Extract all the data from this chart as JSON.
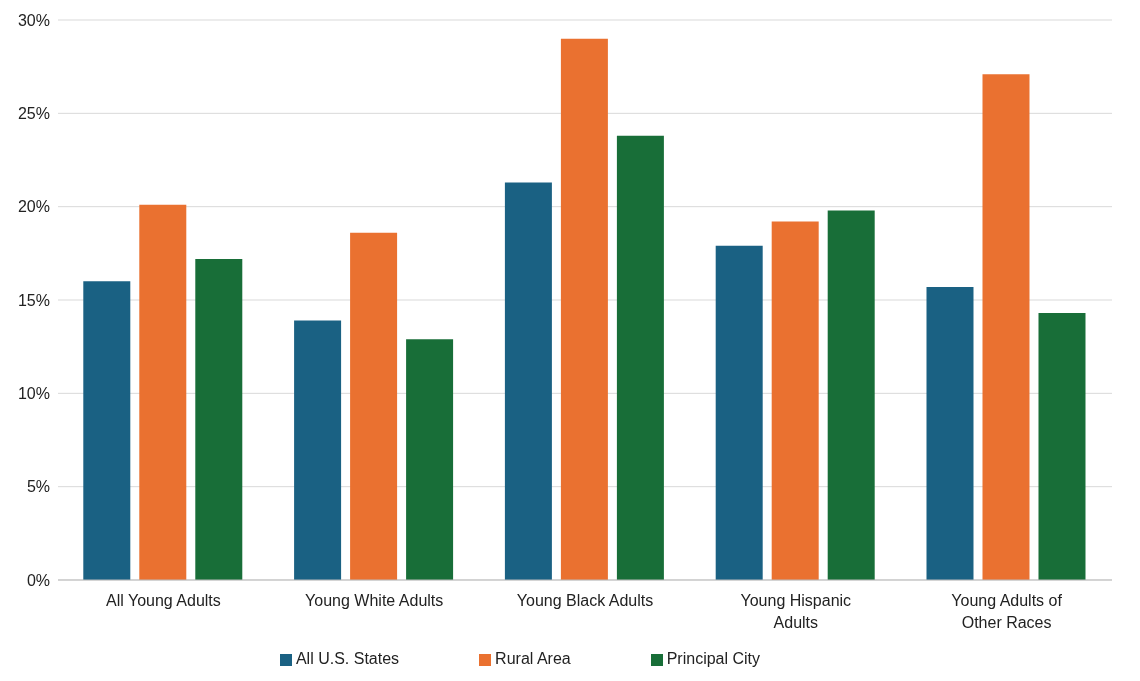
{
  "chart_data": {
    "type": "bar",
    "categories": [
      "All Young Adults",
      "Young White Adults",
      "Young Black Adults",
      "Young Hispanic Adults",
      "Young Adults of Other Races"
    ],
    "series": [
      {
        "name": "All U.S. States",
        "color": "#1a6183",
        "values": [
          16.0,
          13.9,
          21.3,
          17.9,
          15.7
        ]
      },
      {
        "name": "Rural Area",
        "color": "#ea7130",
        "values": [
          20.1,
          18.6,
          29.0,
          19.2,
          27.1
        ]
      },
      {
        "name": "Principal City",
        "color": "#186e38",
        "values": [
          17.2,
          12.9,
          23.8,
          19.8,
          14.3
        ]
      }
    ],
    "ylim": [
      0,
      30
    ],
    "yticks": [
      {
        "value": 0,
        "label": "0%"
      },
      {
        "value": 5,
        "label": "5%"
      },
      {
        "value": 10,
        "label": "10%"
      },
      {
        "value": 15,
        "label": "15%"
      },
      {
        "value": 20,
        "label": "20%"
      },
      {
        "value": 25,
        "label": "25%"
      },
      {
        "value": 30,
        "label": "30%"
      }
    ],
    "grid": "y",
    "legend": "bottom"
  }
}
